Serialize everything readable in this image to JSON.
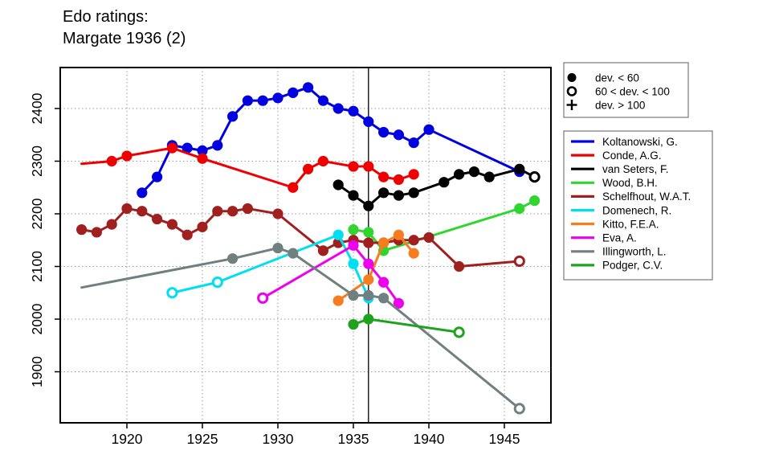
{
  "title": {
    "line1": "Edo ratings:",
    "line2": "Margate 1936 (2)"
  },
  "chart_data": {
    "type": "line",
    "title": "Edo ratings: Margate 1936 (2)",
    "xlabel": "",
    "ylabel": "",
    "grid": "dotted",
    "x_ticks": [
      1920,
      1925,
      1930,
      1935,
      1940,
      1945
    ],
    "y_ticks": [
      1900,
      2000,
      2100,
      2200,
      2300,
      2400
    ],
    "x_range": [
      1915.6,
      1948.1
    ],
    "y_range": [
      1803,
      2478
    ],
    "event_year_line": 1936,
    "marker_legend": [
      {
        "marker": "filled",
        "label": "dev. < 60"
      },
      {
        "marker": "open",
        "label": "60 < dev. < 100"
      },
      {
        "marker": "plus",
        "label": "dev. > 100"
      }
    ],
    "marker_codes": {
      "f": "filled (dev. < 60)",
      "o": "open (60 < dev. < 100)",
      "p": "plus (dev. > 100)",
      "n": "line endpoint, no marker"
    },
    "series": [
      {
        "name": "Koltanowski, G.",
        "color": "#0000E0",
        "points": [
          [
            1921,
            2240,
            "f"
          ],
          [
            1922,
            2270,
            "f"
          ],
          [
            1923,
            2330,
            "f"
          ],
          [
            1924,
            2325,
            "f"
          ],
          [
            1925,
            2320,
            "f"
          ],
          [
            1926,
            2330,
            "f"
          ],
          [
            1927,
            2385,
            "f"
          ],
          [
            1928,
            2415,
            "f"
          ],
          [
            1929,
            2415,
            "f"
          ],
          [
            1930,
            2420,
            "f"
          ],
          [
            1931,
            2430,
            "f"
          ],
          [
            1932,
            2440,
            "f"
          ],
          [
            1933,
            2415,
            "f"
          ],
          [
            1934,
            2400,
            "f"
          ],
          [
            1935,
            2395,
            "f"
          ],
          [
            1936,
            2375,
            "f"
          ],
          [
            1937,
            2355,
            "f"
          ],
          [
            1938,
            2350,
            "f"
          ],
          [
            1939,
            2335,
            "f"
          ],
          [
            1940,
            2360,
            "f"
          ],
          [
            1946,
            2280,
            "f"
          ]
        ]
      },
      {
        "name": "Conde, A.G.",
        "color": "#EE0000",
        "points": [
          [
            1917,
            2295,
            "n"
          ],
          [
            1919,
            2300,
            "f"
          ],
          [
            1920,
            2310,
            "f"
          ],
          [
            1923,
            2325,
            "f"
          ],
          [
            1925,
            2305,
            "f"
          ],
          [
            1931,
            2250,
            "f"
          ],
          [
            1932,
            2285,
            "f"
          ],
          [
            1933,
            2300,
            "f"
          ],
          [
            1935,
            2290,
            "f"
          ],
          [
            1936,
            2290,
            "f"
          ],
          [
            1937,
            2270,
            "f"
          ],
          [
            1938,
            2265,
            "f"
          ],
          [
            1939,
            2275,
            "f"
          ]
        ]
      },
      {
        "name": "van Seters, F.",
        "color": "#000000",
        "points": [
          [
            1934,
            2255,
            "f"
          ],
          [
            1935,
            2235,
            "f"
          ],
          [
            1936,
            2215,
            "f"
          ],
          [
            1937,
            2240,
            "f"
          ],
          [
            1938,
            2235,
            "f"
          ],
          [
            1939,
            2240,
            "f"
          ],
          [
            1941,
            2260,
            "f"
          ],
          [
            1942,
            2275,
            "f"
          ],
          [
            1943,
            2280,
            "f"
          ],
          [
            1944,
            2270,
            "f"
          ],
          [
            1946,
            2285,
            "f"
          ],
          [
            1947,
            2270,
            "o"
          ]
        ]
      },
      {
        "name": "Wood, B.H.",
        "color": "#30D530",
        "points": [
          [
            1935,
            2170,
            "f"
          ],
          [
            1936,
            2165,
            "f"
          ],
          [
            1937,
            2130,
            "f"
          ],
          [
            1946,
            2210,
            "f"
          ],
          [
            1947,
            2225,
            "f"
          ]
        ]
      },
      {
        "name": "Schelfhout, W.A.T.",
        "color": "#A02020",
        "points": [
          [
            1917,
            2170,
            "f"
          ],
          [
            1918,
            2165,
            "f"
          ],
          [
            1919,
            2180,
            "f"
          ],
          [
            1920,
            2210,
            "f"
          ],
          [
            1921,
            2205,
            "f"
          ],
          [
            1922,
            2190,
            "f"
          ],
          [
            1923,
            2180,
            "f"
          ],
          [
            1924,
            2160,
            "f"
          ],
          [
            1925,
            2175,
            "f"
          ],
          [
            1926,
            2205,
            "f"
          ],
          [
            1927,
            2205,
            "f"
          ],
          [
            1928,
            2210,
            "f"
          ],
          [
            1930,
            2200,
            "f"
          ],
          [
            1933,
            2130,
            "f"
          ],
          [
            1934,
            2145,
            "f"
          ],
          [
            1935,
            2150,
            "f"
          ],
          [
            1936,
            2145,
            "f"
          ],
          [
            1937,
            2145,
            "f"
          ],
          [
            1938,
            2150,
            "f"
          ],
          [
            1939,
            2150,
            "f"
          ],
          [
            1940,
            2155,
            "f"
          ],
          [
            1942,
            2100,
            "f"
          ],
          [
            1946,
            2110,
            "o"
          ]
        ]
      },
      {
        "name": "Domenech, R.",
        "color": "#00DFF0",
        "points": [
          [
            1923,
            2050,
            "o"
          ],
          [
            1926,
            2070,
            "o"
          ],
          [
            1934,
            2160,
            "f"
          ],
          [
            1935,
            2105,
            "f"
          ],
          [
            1936,
            2040,
            "f"
          ]
        ]
      },
      {
        "name": "Kitto, F.E.A.",
        "color": "#F57C1F",
        "points": [
          [
            1934,
            2035,
            "f"
          ],
          [
            1936,
            2075,
            "f"
          ],
          [
            1937,
            2145,
            "f"
          ],
          [
            1938,
            2160,
            "f"
          ],
          [
            1939,
            2125,
            "f"
          ]
        ]
      },
      {
        "name": "Eva, A.",
        "color": "#EE00EE",
        "points": [
          [
            1929,
            2040,
            "o"
          ],
          [
            1935,
            2140,
            "f"
          ],
          [
            1936,
            2105,
            "f"
          ],
          [
            1937,
            2070,
            "f"
          ],
          [
            1938,
            2030,
            "f"
          ]
        ]
      },
      {
        "name": "Illingworth, L.",
        "color": "#708080",
        "points": [
          [
            1917,
            2060,
            "n"
          ],
          [
            1927,
            2115,
            "f"
          ],
          [
            1930,
            2135,
            "f"
          ],
          [
            1931,
            2125,
            "f"
          ],
          [
            1935,
            2045,
            "f"
          ],
          [
            1936,
            2045,
            "f"
          ],
          [
            1937,
            2040,
            "f"
          ],
          [
            1946,
            1830,
            "o"
          ]
        ]
      },
      {
        "name": "Podger, C.V.",
        "color": "#1FA31F",
        "points": [
          [
            1935,
            1990,
            "f"
          ],
          [
            1936,
            2000,
            "f"
          ],
          [
            1942,
            1975,
            "o"
          ]
        ]
      }
    ]
  }
}
